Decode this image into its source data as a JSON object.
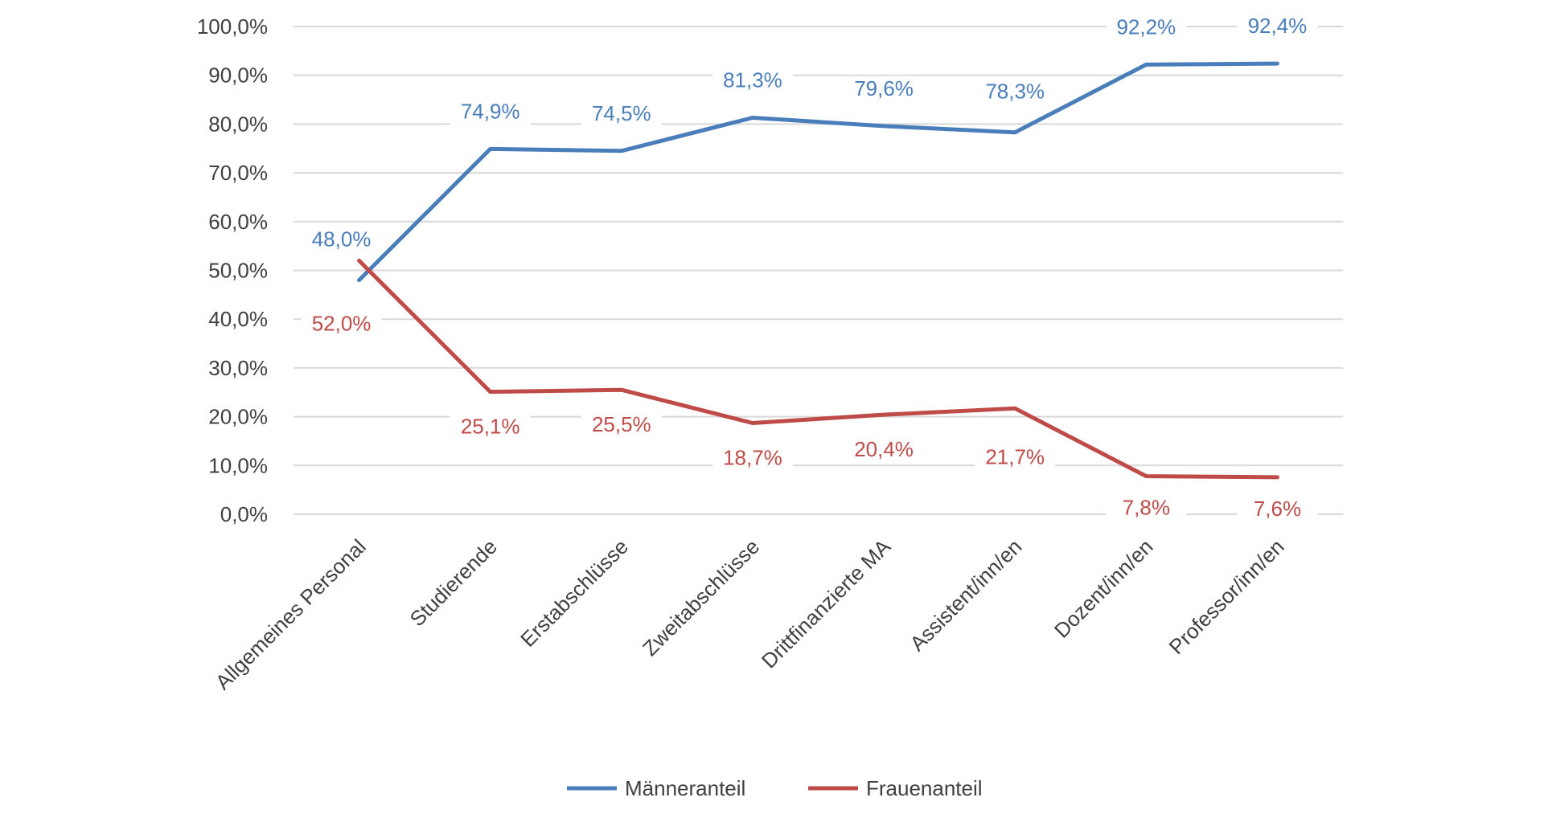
{
  "chart_data": {
    "type": "line",
    "categories": [
      "Allgemeines Personal",
      "Studierende",
      "Erstabschlüsse",
      "Zweitabschlüsse",
      "Drittfinanzierte MA",
      "Assistent/inn/en",
      "Dozent/inn/en",
      "Professor/inn/en"
    ],
    "series": [
      {
        "name": "Männeranteil",
        "color": "#4a7ebb",
        "values": [
          48.0,
          74.9,
          74.5,
          81.3,
          79.6,
          78.3,
          92.2,
          92.4
        ],
        "labels": [
          "48,0%",
          "74,9%",
          "74,5%",
          "81,3%",
          "79,6%",
          "78,3%",
          "92,2%",
          "92,4%"
        ]
      },
      {
        "name": "Frauenanteil",
        "color": "#be4b48",
        "values": [
          52.0,
          25.1,
          25.5,
          18.7,
          20.4,
          21.7,
          7.8,
          7.6
        ],
        "labels": [
          "52,0%",
          "25,1%",
          "25,5%",
          "18,7%",
          "20,4%",
          "21,7%",
          "7,8%",
          "7,6%"
        ]
      }
    ],
    "ylim": [
      0,
      100
    ],
    "yticks": [
      "0,0%",
      "10,0%",
      "20,0%",
      "30,0%",
      "40,0%",
      "50,0%",
      "60,0%",
      "70,0%",
      "80,0%",
      "90,0%",
      "100,0%"
    ],
    "grid": true,
    "legend_position": "bottom",
    "gridline_color": "#d9d9d9"
  }
}
